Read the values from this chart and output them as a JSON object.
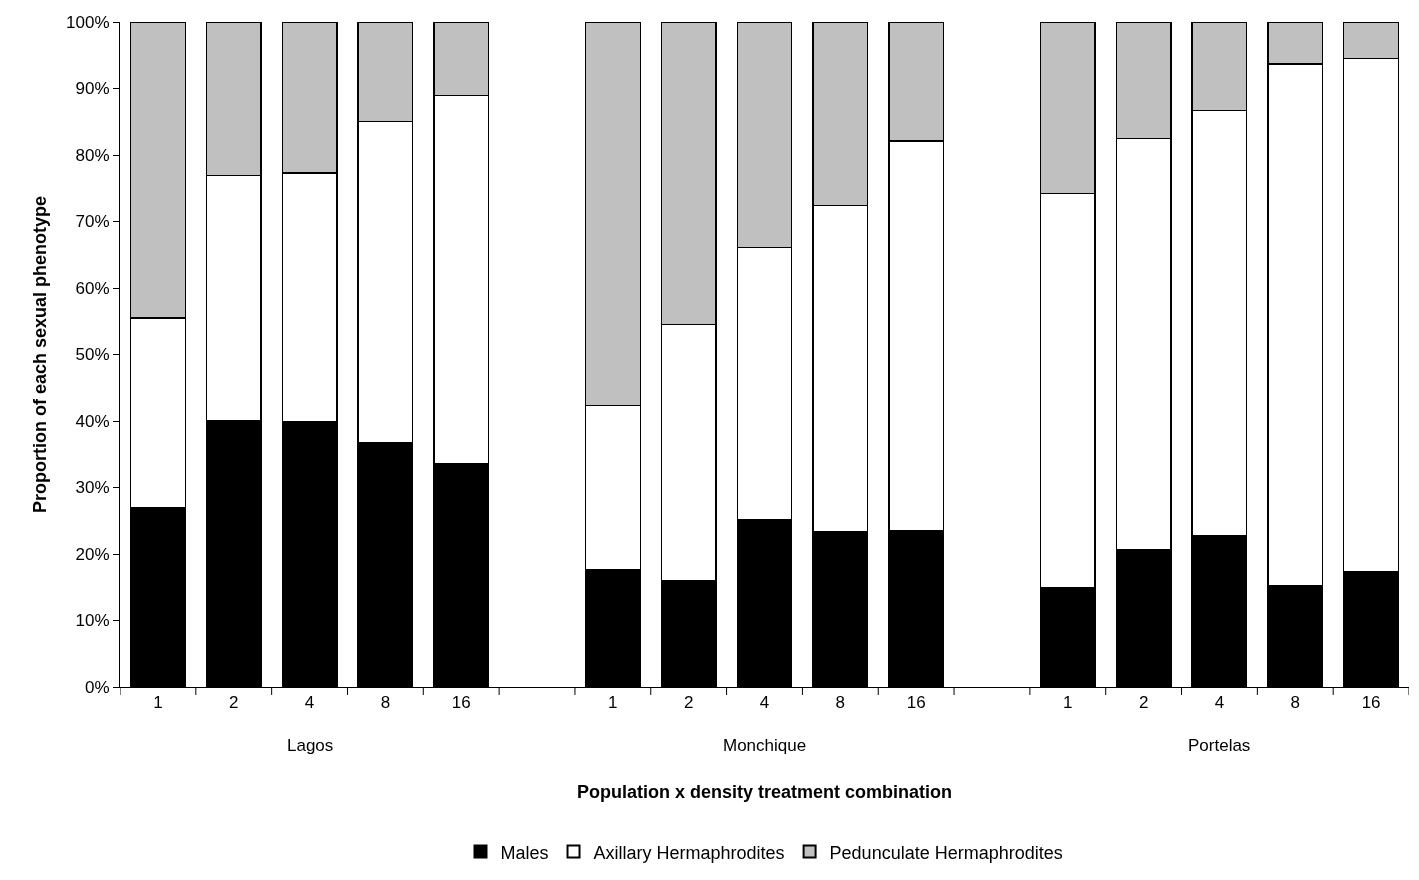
{
  "chart_data": {
    "type": "bar",
    "stacked": true,
    "xlabel": "Population x density treatment combination",
    "ylabel": "Proportion of each sexual phenotype",
    "categories": [
      "1",
      "2",
      "4",
      "8",
      "16",
      null,
      "1",
      "2",
      "4",
      "8",
      "16",
      null,
      "1",
      "2",
      "4",
      "8",
      "16"
    ],
    "annotations": [
      "Lagos",
      "Monchique",
      "Portelas"
    ],
    "series": [
      {
        "name": "Males",
        "color": "#000000",
        "values": [
          27.0,
          40.0,
          39.9,
          36.7,
          33.6,
          null,
          17.6,
          16.0,
          25.1,
          23.4,
          23.5,
          null,
          14.9,
          20.7,
          22.8,
          15.3,
          17.3
        ]
      },
      {
        "name": "Axillary Hermaphrodites",
        "color": "#ffffff",
        "values": [
          28.5,
          36.9,
          37.4,
          48.3,
          55.4,
          null,
          24.7,
          38.5,
          41.0,
          49.0,
          58.6,
          null,
          59.3,
          61.8,
          63.9,
          78.4,
          77.2
        ]
      },
      {
        "name": "Pedunculate Hermaphrodites",
        "color": "#c0c0c0",
        "values": [
          44.5,
          23.1,
          22.7,
          15.0,
          11.0,
          null,
          57.7,
          45.5,
          33.9,
          27.6,
          17.9,
          null,
          25.8,
          17.5,
          13.3,
          6.3,
          5.5
        ]
      }
    ],
    "ylim": [
      0,
      100
    ],
    "yticks": [
      {
        "value": 0,
        "label": "0%"
      },
      {
        "value": 10,
        "label": "10%"
      },
      {
        "value": 20,
        "label": "20%"
      },
      {
        "value": 30,
        "label": "30%"
      },
      {
        "value": 40,
        "label": "40%"
      },
      {
        "value": 50,
        "label": "50%"
      },
      {
        "value": 60,
        "label": "60%"
      },
      {
        "value": 70,
        "label": "70%"
      },
      {
        "value": 80,
        "label": "80%"
      },
      {
        "value": 90,
        "label": "90%"
      },
      {
        "value": 100,
        "label": "100%"
      }
    ],
    "legend": "bottom"
  }
}
